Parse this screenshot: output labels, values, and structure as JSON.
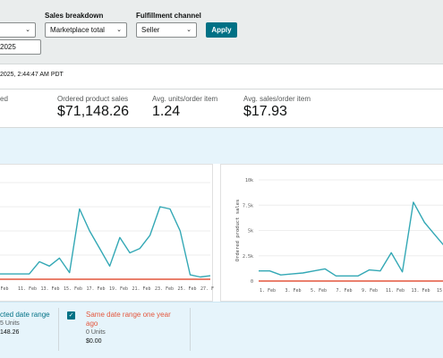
{
  "filters": {
    "sales_breakdown_label": "Sales breakdown",
    "sales_breakdown_value": "Marketplace total",
    "fulfillment_label": "Fulfillment channel",
    "fulfillment_value": "Seller",
    "apply_label": "Apply",
    "date_value": "2025"
  },
  "timestamp": "2025, 2:44:47 AM PDT",
  "metrics": [
    {
      "label": "ed",
      "value": ""
    },
    {
      "label": "Ordered product sales",
      "value": "$71,148.26"
    },
    {
      "label": "Avg. units/order item",
      "value": "1.24"
    },
    {
      "label": "Avg. sales/order item",
      "value": "$17.93"
    }
  ],
  "colors": {
    "line_selected": "#33a8b5",
    "line_prior": "#e4573d",
    "accent": "#007185"
  },
  "chart_data": [
    {
      "type": "line",
      "xlabel": "",
      "ylabel": "",
      "x_tick_labels": [
        "Feb",
        "11. Feb",
        "13. Feb",
        "15. Feb",
        "17. Feb",
        "19. Feb",
        "21. Feb",
        "23. Feb",
        "25. Feb",
        "27. Feb"
      ],
      "series": [
        {
          "color": "#33a8b5",
          "values": [
            12,
            12,
            12,
            12,
            40,
            30,
            48,
            15,
            160,
            110,
            70,
            30,
            95,
            60,
            70,
            100,
            165,
            160,
            110,
            10,
            5,
            8
          ]
        },
        {
          "color": "#e4573d",
          "values": [
            0,
            0,
            0,
            0,
            0,
            0,
            0,
            0,
            0,
            0,
            0,
            0,
            0,
            0,
            0,
            0,
            0,
            0,
            0,
            0,
            0,
            0
          ]
        }
      ],
      "ylim": [
        0,
        220
      ]
    },
    {
      "type": "line",
      "ylabel": "Ordered product sales",
      "y_tick_labels": [
        "0",
        "2.5k",
        "5k",
        "7.5k",
        "10k"
      ],
      "x_tick_labels": [
        "1. Feb",
        "3. Feb",
        "5. Feb",
        "7. Feb",
        "9. Feb",
        "11. Feb",
        "13. Feb",
        "15. Feb",
        "17. F"
      ],
      "series": [
        {
          "color": "#33a8b5",
          "values": [
            1000,
            1000,
            600,
            700,
            800,
            1000,
            1200,
            500,
            500,
            500,
            1100,
            1000,
            2800,
            900,
            7800,
            5800,
            4500,
            3200
          ]
        },
        {
          "color": "#e4573d",
          "values": [
            0,
            0,
            0,
            0,
            0,
            0,
            0,
            0,
            0,
            0,
            0,
            0,
            0,
            0,
            0,
            0,
            0,
            0
          ]
        }
      ],
      "ylim": [
        0,
        10000
      ]
    }
  ],
  "legend": {
    "selected_title": "cted date range",
    "selected_units": "5 Units",
    "selected_sales": "148.26",
    "prior_title_1": "Same date range one year",
    "prior_title_2": "ago",
    "prior_units": "0 Units",
    "prior_sales": "$0.00",
    "check_glyph": "✓"
  }
}
